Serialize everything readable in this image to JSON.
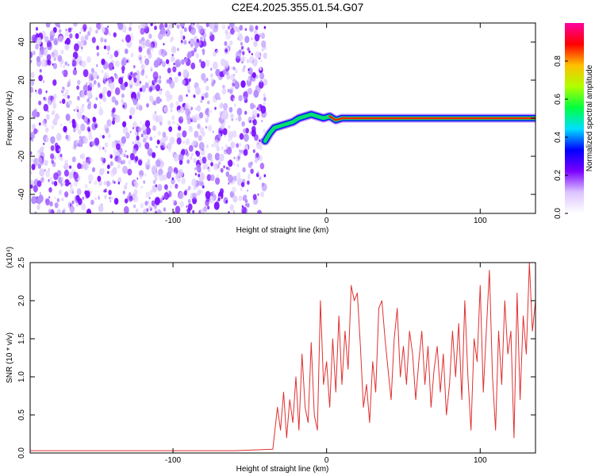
{
  "title": "C2E4.2025.355.01.54.G07",
  "chart_data": [
    {
      "type": "heatmap",
      "xlabel": "Height of straight line (km)",
      "ylabel": "Frequency (Hz)",
      "xlim": [
        -193,
        136
      ],
      "ylim": [
        -50,
        50
      ],
      "xticks": [
        -100,
        0,
        100
      ],
      "xtick_labels": [
        "-100",
        "0",
        "100"
      ],
      "yticks": [
        -40,
        -20,
        0,
        20,
        40
      ],
      "ytick_labels": [
        "-40",
        "-20",
        "0",
        "20",
        "40"
      ],
      "noise_region_x": [
        -193,
        -40
      ],
      "ridge": {
        "x": [
          -40,
          -37,
          -34,
          -30,
          -26,
          -22,
          -18,
          -14,
          -10,
          -6,
          -2,
          2,
          6,
          10,
          15,
          20,
          30,
          40,
          60,
          80,
          100,
          120,
          136
        ],
        "y": [
          -12,
          -8,
          -5,
          -4,
          -3,
          -2,
          0,
          1,
          2,
          1,
          0,
          1,
          -1,
          0,
          0,
          0,
          0,
          0,
          0,
          0,
          0,
          0,
          0
        ]
      },
      "colorbar": {
        "label": "Normalized spectral amplitude",
        "range": [
          0,
          1
        ],
        "ticks": [
          0.0,
          0.2,
          0.4,
          0.6,
          0.8
        ],
        "tick_labels": [
          "0.0",
          "0.2",
          "0.4",
          "0.6",
          "0.8"
        ],
        "colors": [
          "#ffffff",
          "#dcc4ff",
          "#7a00ff",
          "#0000ff",
          "#00e0ff",
          "#00ff40",
          "#b0ff00",
          "#ffc000",
          "#ff0000",
          "#ff00a0"
        ]
      },
      "colors": {
        "ridge_core": "#ff2200",
        "ridge_edge": "#00e070",
        "noise": "#7a10ff"
      }
    },
    {
      "type": "line",
      "xlabel": "Height of straight line (km)",
      "ylabel": "SNR (10 * v/v)",
      "y_multiplier": "(x10⁴)",
      "xlim": [
        -193,
        136
      ],
      "ylim": [
        0,
        2.5
      ],
      "xticks": [
        -100,
        0,
        100
      ],
      "xtick_labels": [
        "-100",
        "0",
        "100"
      ],
      "yticks": [
        0,
        0.5,
        1.0,
        1.5,
        2.0,
        2.5
      ],
      "ytick_labels": [
        "0.0",
        "0.5",
        "1.0",
        "1.5",
        "2.0",
        "2.5"
      ],
      "series": [
        {
          "color": "#e03030",
          "x": [
            -193,
            -150,
            -100,
            -60,
            -35,
            -32,
            -30,
            -28,
            -26,
            -24,
            -22,
            -20,
            -18,
            -16,
            -14,
            -12,
            -10,
            -8,
            -6,
            -4,
            -2,
            0,
            2,
            4,
            6,
            8,
            10,
            12,
            14,
            16,
            18,
            20,
            22,
            24,
            26,
            28,
            30,
            32,
            34,
            36,
            38,
            40,
            42,
            44,
            46,
            48,
            50,
            52,
            54,
            56,
            58,
            60,
            62,
            64,
            66,
            68,
            70,
            72,
            74,
            76,
            78,
            80,
            82,
            84,
            86,
            88,
            90,
            92,
            94,
            96,
            98,
            100,
            102,
            104,
            106,
            108,
            110,
            112,
            114,
            116,
            118,
            120,
            122,
            124,
            126,
            128,
            130,
            132,
            134,
            136
          ],
          "y": [
            0.03,
            0.03,
            0.03,
            0.03,
            0.05,
            0.6,
            0.3,
            0.8,
            0.2,
            0.7,
            0.4,
            1.0,
            0.3,
            1.3,
            0.6,
            0.4,
            1.45,
            0.5,
            0.3,
            2.0,
            0.9,
            1.2,
            0.6,
            1.5,
            0.8,
            1.8,
            0.9,
            1.6,
            1.1,
            2.2,
            2.0,
            2.1,
            1.4,
            0.6,
            0.9,
            0.4,
            1.2,
            0.8,
            1.9,
            2.0,
            1.5,
            1.1,
            0.7,
            1.5,
            1.9,
            1.0,
            1.4,
            0.9,
            1.6,
            1.3,
            0.7,
            1.2,
            1.6,
            0.9,
            1.4,
            0.6,
            1.1,
            1.4,
            0.8,
            1.3,
            0.5,
            0.9,
            1.6,
            1.0,
            1.7,
            0.7,
            2.0,
            1.0,
            0.3,
            1.5,
            1.2,
            2.2,
            0.8,
            1.6,
            2.4,
            1.0,
            0.3,
            1.6,
            0.9,
            2.0,
            1.3,
            1.6,
            0.2,
            2.1,
            0.7,
            1.8,
            1.3,
            2.5,
            1.6,
            2.0
          ]
        }
      ]
    }
  ]
}
